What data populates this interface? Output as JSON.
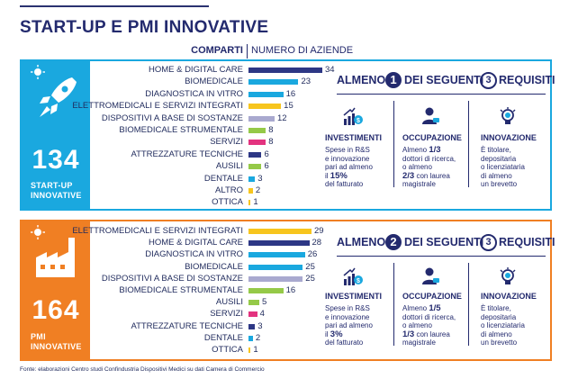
{
  "title": "START-UP E PMI INNOVATIVE",
  "header": {
    "compart": "COMPARTI",
    "numero": "NUMERO DI AZIENDE"
  },
  "colors": {
    "startup": "#1aa8df",
    "pmi": "#f07f23",
    "navy": "#232a6e"
  },
  "startup": {
    "total": "134",
    "label_line1": "START-UP",
    "label_line2": "INNOVATIVE",
    "requirements": {
      "almeno": "ALMENO",
      "n": "1",
      "dei_seguenti": "DEI SEGUENTI",
      "m": "3",
      "requisiti": "REQUISITI",
      "investimenti": {
        "title": "INVESTIMENTI",
        "l1": "Spese in R&S",
        "l2": "e innovazione",
        "l3": "pari ad almeno",
        "l4": "il",
        "value": "15%",
        "l5": "del fatturato"
      },
      "occupazione": {
        "title": "OCCUPAZIONE",
        "l1": "Almeno",
        "v1": "1/3",
        "l2": "dottori di ricerca,",
        "l3": "o almeno",
        "v2": "2/3",
        "l4": "con laurea",
        "l5": "magistrale"
      },
      "innovazione": {
        "title": "INNOVAZIONE",
        "l1": "È titolare,",
        "l2": "depositaria",
        "l3": "o licenziataria",
        "l4": "di almeno",
        "l5": "un brevetto"
      }
    }
  },
  "pmi": {
    "total": "164",
    "label_line1": "PMI",
    "label_line2": "INNOVATIVE",
    "requirements": {
      "almeno": "ALMENO",
      "n": "2",
      "dei_seguenti": "DEI SEGUENTI",
      "m": "3",
      "requisiti": "REQUISITI",
      "investimenti": {
        "title": "INVESTIMENTI",
        "l1": "Spese in R&S",
        "l2": "e innovazione",
        "l3": "pari ad almeno",
        "l4": "il",
        "value": "3%",
        "l5": "del fatturato"
      },
      "occupazione": {
        "title": "OCCUPAZIONE",
        "l1": "Almeno",
        "v1": "1/5",
        "l2": "dottori di ricerca,",
        "l3": "o almeno",
        "v2": "1/3",
        "l4": "con laurea",
        "l5": "magistrale"
      },
      "innovazione": {
        "title": "INNOVAZIONE",
        "l1": "È titolare,",
        "l2": "depositaria",
        "l3": "o licenziataria",
        "l4": "di almeno",
        "l5": "un brevetto"
      }
    }
  },
  "chart_data": [
    {
      "type": "bar",
      "orientation": "horizontal",
      "title": "START-UP INNOVATIVE",
      "xlabel": "NUMERO DI AZIENDE",
      "ylabel": "COMPARTI",
      "xlim": [
        0,
        34
      ],
      "categories": [
        "HOME & DIGITAL CARE",
        "BIOMEDICALE",
        "DIAGNOSTICA IN VITRO",
        "ELETTROMEDICALI E SERVIZI INTEGRATI",
        "DISPOSITIVI A BASE DI SOSTANZE",
        "BIOMEDICALE STRUMENTALE",
        "SERVIZI",
        "ATTREZZATURE TECNICHE",
        "AUSILI",
        "DENTALE",
        "ALTRO",
        "OTTICA"
      ],
      "values": [
        34,
        23,
        16,
        15,
        12,
        8,
        8,
        6,
        6,
        3,
        2,
        1
      ],
      "labels": [
        "34",
        "23",
        "16",
        "15",
        "12",
        "8",
        "8",
        "6",
        "6",
        "3",
        "2",
        "1"
      ],
      "colors": [
        "#2d3785",
        "#1aa8df",
        "#1aa8df",
        "#f7c51e",
        "#a9a9cf",
        "#95c948",
        "#e3337f",
        "#2d3785",
        "#95c948",
        "#1aa8df",
        "#f7c51e",
        "#f7c51e"
      ]
    },
    {
      "type": "bar",
      "orientation": "horizontal",
      "title": "PMI INNOVATIVE",
      "xlabel": "NUMERO DI AZIENDE",
      "ylabel": "COMPARTI",
      "xlim": [
        0,
        34
      ],
      "categories": [
        "ELETTROMEDICALI E SERVIZI INTEGRATI",
        "HOME & DIGITAL CARE",
        "DIAGNOSTICA IN VITRO",
        "BIOMEDICALE",
        "DISPOSITIVI A BASE DI SOSTANZE",
        "BIOMEDICALE STRUMENTALE",
        "AUSILI",
        "SERVIZI",
        "ATTREZZATURE TECNICHE",
        "DENTALE",
        "OTTICA"
      ],
      "values": [
        29,
        28,
        26,
        25,
        25,
        16,
        5,
        4,
        3,
        2,
        1
      ],
      "labels": [
        "29",
        "28",
        "26",
        "25",
        "25",
        "16",
        "5",
        "4",
        "3",
        "2",
        "1"
      ],
      "colors": [
        "#f7c51e",
        "#2d3785",
        "#1aa8df",
        "#1aa8df",
        "#a9a9cf",
        "#95c948",
        "#95c948",
        "#e3337f",
        "#2d3785",
        "#1aa8df",
        "#f7c51e"
      ]
    }
  ],
  "footnote": "Fonte: elaborazioni Centro studi Confindustria Dispositivi Medici su dati Camera di Commercio"
}
